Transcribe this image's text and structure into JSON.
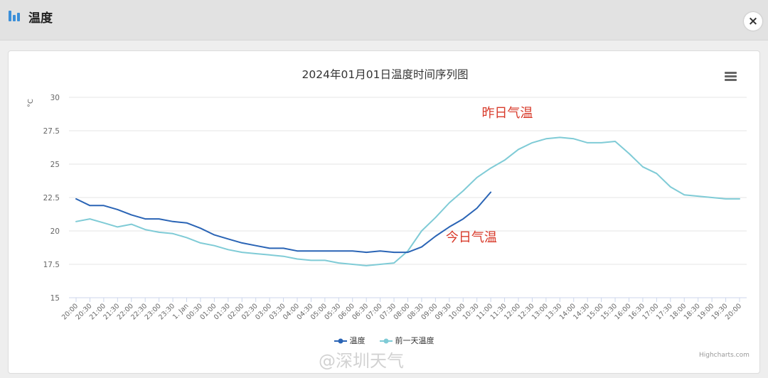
{
  "header": {
    "title": "温度",
    "close_label": "×"
  },
  "chart_data": {
    "type": "line",
    "title": "2024年01月01日温度时间序列图",
    "ylabel": "°C",
    "ylim": [
      15,
      30
    ],
    "yticks": [
      "15",
      "17.5",
      "20",
      "22.5",
      "25",
      "27.5",
      "30"
    ],
    "xticks": [
      "20:00",
      "20:30",
      "21:00",
      "21:30",
      "22:00",
      "22:30",
      "23:00",
      "23:30",
      "1. Jan",
      "00:30",
      "01:00",
      "01:30",
      "02:00",
      "02:30",
      "03:00",
      "03:30",
      "04:00",
      "04:30",
      "05:00",
      "05:30",
      "06:00",
      "06:30",
      "07:00",
      "07:30",
      "08:00",
      "08:30",
      "09:00",
      "09:30",
      "10:00",
      "10:30",
      "11:00",
      "11:30",
      "12:00",
      "12:30",
      "13:00",
      "13:30",
      "14:00",
      "14:30",
      "15:00",
      "15:30",
      "16:00",
      "16:30",
      "17:00",
      "17:30",
      "18:00",
      "18:30",
      "19:00",
      "19:30",
      "20:00"
    ],
    "grid": true,
    "legend_position": "bottom-center",
    "series": [
      {
        "name": "温度",
        "color": "#2a64b5",
        "x": [
          0,
          0.5,
          1,
          1.5,
          2,
          2.5,
          3,
          3.5,
          4,
          4.5,
          5,
          5.5,
          6,
          6.5,
          7,
          7.5,
          8,
          8.5,
          9,
          9.5,
          10,
          10.5,
          11,
          11.5,
          12,
          12.5,
          13,
          13.5,
          14,
          14.5,
          15
        ],
        "y": [
          22.4,
          21.9,
          21.9,
          21.6,
          21.2,
          20.9,
          20.9,
          20.7,
          20.6,
          20.2,
          19.7,
          19.4,
          19.1,
          18.9,
          18.7,
          18.7,
          18.5,
          18.5,
          18.5,
          18.5,
          18.5,
          18.4,
          18.5,
          18.4,
          18.4,
          18.8,
          19.6,
          20.3,
          20.9,
          21.7,
          22.9
        ]
      },
      {
        "name": "前一天温度",
        "color": "#7fcbd6",
        "x": [
          0,
          0.5,
          1,
          1.5,
          2,
          2.5,
          3,
          3.5,
          4,
          4.5,
          5,
          5.5,
          6,
          6.5,
          7,
          7.5,
          8,
          8.5,
          9,
          9.5,
          10,
          10.5,
          11,
          11.5,
          12,
          12.5,
          13,
          13.5,
          14,
          14.5,
          15,
          15.5,
          16,
          16.5,
          17,
          17.5,
          18,
          18.5,
          19,
          19.5,
          20,
          20.5,
          21,
          21.5,
          22,
          22.5,
          23,
          23.5,
          24
        ],
        "y": [
          20.7,
          20.9,
          20.6,
          20.3,
          20.5,
          20.1,
          19.9,
          19.8,
          19.5,
          19.1,
          18.9,
          18.6,
          18.4,
          18.3,
          18.2,
          18.1,
          17.9,
          17.8,
          17.8,
          17.6,
          17.5,
          17.4,
          17.5,
          17.6,
          18.5,
          20.0,
          21.0,
          22.1,
          23.0,
          24.0,
          24.7,
          25.3,
          26.1,
          26.6,
          26.9,
          27.0,
          26.9,
          26.6,
          26.6,
          26.7,
          25.8,
          24.8,
          24.3,
          23.3,
          22.7,
          22.6,
          22.5,
          22.4,
          22.4
        ]
      }
    ],
    "annotations": [
      {
        "text": "昨日气温",
        "color": "#d83a2a",
        "x": 15.6,
        "y": 28.5
      },
      {
        "text": "今日气温",
        "color": "#d83a2a",
        "x": 14.3,
        "y": 19.2
      }
    ]
  },
  "legend": {
    "items": [
      "温度",
      "前一天温度"
    ]
  },
  "credits": "Highcharts.com",
  "watermark": "@深圳天气"
}
